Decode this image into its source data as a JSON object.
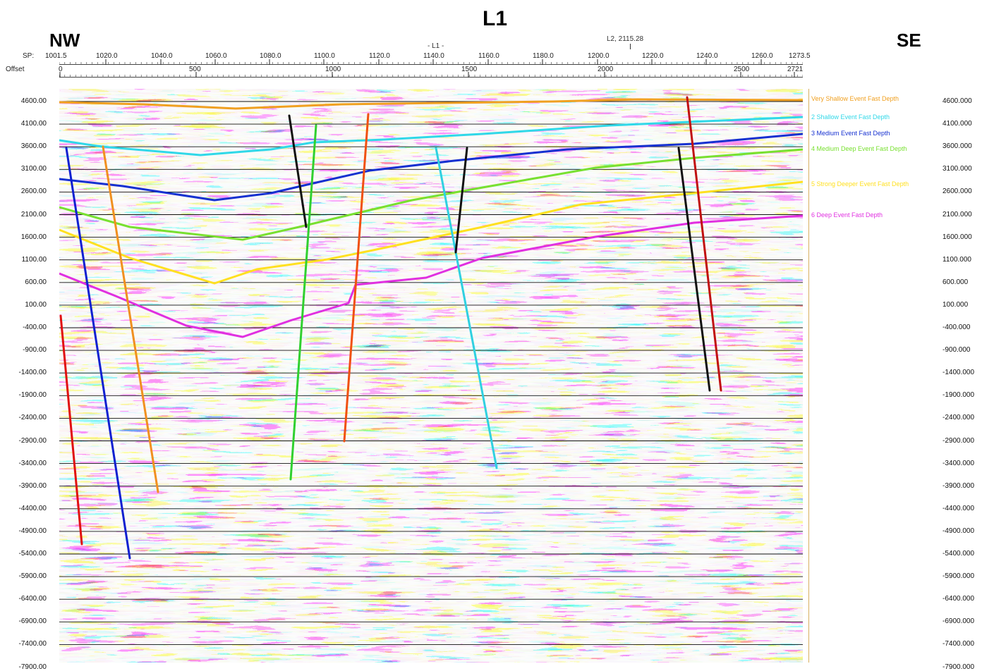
{
  "title": "L1",
  "left_direction": "NW",
  "right_direction": "SE",
  "intersection_markers": {
    "current_line": "- L1 -",
    "crossing_line": "L2, 2115.28"
  },
  "sp_axis": {
    "label": "SP:",
    "ticks": [
      "1001.5",
      "1020.0",
      "1040.0",
      "1060.0",
      "1080.0",
      "1100.0",
      "1120.0",
      "1140.0",
      "1160.0",
      "1180.0",
      "1200.0",
      "1220.0",
      "1240.0",
      "1260.0",
      "1273.5"
    ]
  },
  "offset_axis": {
    "label": "Offset",
    "ticks": [
      "0",
      "500",
      "1000",
      "1500",
      "2000",
      "2500",
      "2721"
    ]
  },
  "depth_axis_left": [
    "4600.00",
    "4100.00",
    "3600.00",
    "3100.00",
    "2600.00",
    "2100.00",
    "1600.00",
    "1100.00",
    "600.00",
    "100.00",
    "-400.00",
    "-900.00",
    "-1400.00",
    "-1900.00",
    "-2400.00",
    "-2900.00",
    "-3400.00",
    "-3900.00",
    "-4400.00",
    "-4900.00",
    "-5400.00",
    "-5900.00",
    "-6400.00",
    "-6900.00",
    "-7400.00",
    "-7900.00"
  ],
  "depth_axis_right": [
    "4600.000",
    "4100.000",
    "3600.000",
    "3100.000",
    "2600.000",
    "2100.000",
    "1600.000",
    "1100.000",
    "600.000",
    "100.000",
    "-400.000",
    "-900.000",
    "-1400.000",
    "-1900.000",
    "-2400.000",
    "-2900.000",
    "-3400.000",
    "-3900.000",
    "-4400.000",
    "-4900.000",
    "-5400.000",
    "-5900.000",
    "-6400.000",
    "-6900.000",
    "-7400.000",
    "-7900.000"
  ],
  "horizons": [
    {
      "label": "Very Shallow Event Fast Depth",
      "color": "#f0a020"
    },
    {
      "label": "2 Shallow Event Fast Depth",
      "color": "#30d8e8"
    },
    {
      "label": "3 Medium Event Fast Depth",
      "color": "#1530d0"
    },
    {
      "label": "4 Medium Deep Event Fast Depth",
      "color": "#78e030"
    },
    {
      "label": "5 Strong Deeper Event Fast Depth",
      "color": "#ffe020"
    },
    {
      "label": "6 Deep Event Fast Depth",
      "color": "#e030e0"
    }
  ],
  "faults": [
    {
      "name": "fault-red-left",
      "color": "#e01010"
    },
    {
      "name": "fault-blue",
      "color": "#1020d0"
    },
    {
      "name": "fault-orange-left",
      "color": "#f09020"
    },
    {
      "name": "fault-black-1",
      "color": "#111111"
    },
    {
      "name": "fault-green",
      "color": "#30d030"
    },
    {
      "name": "fault-orange-right",
      "color": "#f05010"
    },
    {
      "name": "fault-cyan",
      "color": "#30d0e0"
    },
    {
      "name": "fault-black-2",
      "color": "#111111"
    },
    {
      "name": "fault-black-3",
      "color": "#111111"
    },
    {
      "name": "fault-red-right",
      "color": "#c01010"
    }
  ]
}
